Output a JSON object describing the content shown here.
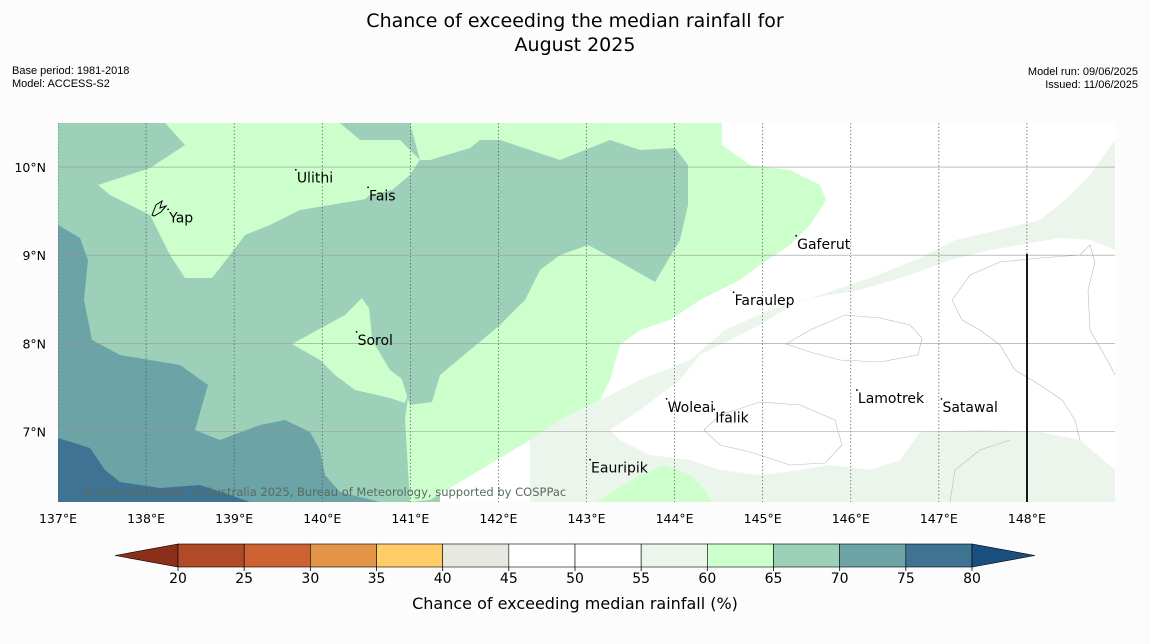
{
  "title_line1": "Chance of exceeding the median rainfall for",
  "title_line2": "August 2025",
  "base_period": "Base period: 1981-2018",
  "model": "Model: ACCESS-S2",
  "model_run": "Model run: 09/06/2025",
  "issued": "Issued: 11/06/2025",
  "copyright": "© Commonwealth of Australia 2025, Bureau of Meteorology, supported by COSPPac",
  "map": {
    "lon_min": 137.0,
    "lon_max": 149.0,
    "lat_min": 6.2,
    "lat_max": 10.5,
    "lon_ticks": [
      "137°E",
      "138°E",
      "139°E",
      "140°E",
      "141°E",
      "142°E",
      "143°E",
      "144°E",
      "145°E",
      "146°E",
      "147°E",
      "148°E"
    ],
    "lat_ticks": [
      "10°N",
      "9°N",
      "8°N",
      "7°N"
    ],
    "places": [
      {
        "name": "Yap",
        "lon": 138.25,
        "lat": 9.52
      },
      {
        "name": "Ulithi",
        "lon": 139.7,
        "lat": 9.97
      },
      {
        "name": "Fais",
        "lon": 140.52,
        "lat": 9.77
      },
      {
        "name": "Gaferut",
        "lon": 145.38,
        "lat": 9.22
      },
      {
        "name": "Faraulep",
        "lon": 144.67,
        "lat": 8.58
      },
      {
        "name": "Sorol",
        "lon": 140.39,
        "lat": 8.13
      },
      {
        "name": "Woleai",
        "lon": 143.91,
        "lat": 7.37
      },
      {
        "name": "Ifalik",
        "lon": 144.45,
        "lat": 7.25
      },
      {
        "name": "Lamotrek",
        "lon": 146.07,
        "lat": 7.47
      },
      {
        "name": "Satawal",
        "lon": 147.03,
        "lat": 7.37
      },
      {
        "name": "Eauripik",
        "lon": 143.04,
        "lat": 6.68
      }
    ]
  },
  "colorbar": {
    "label": "Chance of exceeding median rainfall (%)",
    "ticks": [
      "20",
      "25",
      "30",
      "35",
      "40",
      "45",
      "50",
      "55",
      "60",
      "65",
      "70",
      "75",
      "80"
    ],
    "colors": [
      "#8c2f1a",
      "#b14a26",
      "#cd6332",
      "#e29447",
      "#ffcc66",
      "#e8e8e3",
      "#ffffff",
      "#ffffff",
      "#ebf5eb",
      "#ccffcc",
      "#9dd0b9",
      "#6ba3a6",
      "#3f7393",
      "#1a4e7f"
    ]
  }
}
